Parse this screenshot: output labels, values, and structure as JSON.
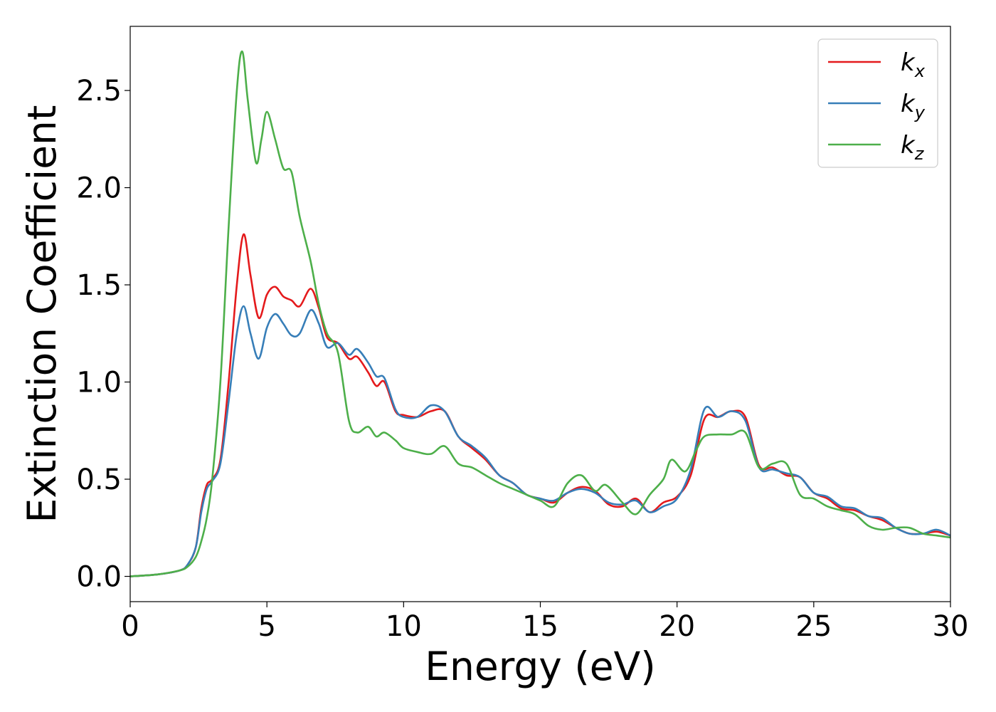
{
  "chart_data": {
    "type": "line",
    "title": "",
    "xlabel": "Energy (eV)",
    "ylabel": "Extinction Coefficient",
    "xlim": [
      0,
      30
    ],
    "ylim": [
      -0.13,
      2.83
    ],
    "xticks": [
      0,
      5,
      10,
      15,
      20,
      25,
      30
    ],
    "xtick_labels": [
      "0",
      "5",
      "10",
      "15",
      "20",
      "25",
      "30"
    ],
    "yticks": [
      0.0,
      0.5,
      1.0,
      1.5,
      2.0,
      2.5
    ],
    "ytick_labels": [
      "0.0",
      "0.5",
      "1.0",
      "1.5",
      "2.0",
      "2.5"
    ],
    "grid": false,
    "legend_position": "top-right",
    "series": [
      {
        "name": "k_x",
        "legend_base": "k",
        "legend_sub": "x",
        "color": "#e41a1c",
        "x": [
          0,
          1,
          1.8,
          2.1,
          2.4,
          2.6,
          2.8,
          3.0,
          3.3,
          3.6,
          3.9,
          4.15,
          4.4,
          4.7,
          5.0,
          5.3,
          5.6,
          5.9,
          6.2,
          6.6,
          6.9,
          7.2,
          7.6,
          8.0,
          8.3,
          8.7,
          9.0,
          9.3,
          9.7,
          10.0,
          10.5,
          11.0,
          11.5,
          12.0,
          12.5,
          13.0,
          13.5,
          14.0,
          14.5,
          15.0,
          15.5,
          16.0,
          16.5,
          17.0,
          17.5,
          18.0,
          18.5,
          19.0,
          19.5,
          20.0,
          20.5,
          21.0,
          21.5,
          22.0,
          22.5,
          23.0,
          23.5,
          24.0,
          24.5,
          25.0,
          25.5,
          26.0,
          26.5,
          27.0,
          27.5,
          28.0,
          28.5,
          29.0,
          29.5,
          30.0
        ],
        "y": [
          0.0,
          0.01,
          0.03,
          0.06,
          0.15,
          0.35,
          0.47,
          0.5,
          0.6,
          1.0,
          1.5,
          1.76,
          1.55,
          1.33,
          1.45,
          1.49,
          1.44,
          1.42,
          1.39,
          1.48,
          1.38,
          1.23,
          1.2,
          1.12,
          1.13,
          1.05,
          0.98,
          1.0,
          0.85,
          0.83,
          0.82,
          0.85,
          0.85,
          0.72,
          0.66,
          0.6,
          0.52,
          0.48,
          0.42,
          0.4,
          0.38,
          0.43,
          0.46,
          0.44,
          0.37,
          0.36,
          0.4,
          0.33,
          0.38,
          0.41,
          0.52,
          0.81,
          0.82,
          0.85,
          0.82,
          0.57,
          0.56,
          0.52,
          0.51,
          0.43,
          0.4,
          0.35,
          0.34,
          0.31,
          0.29,
          0.25,
          0.22,
          0.22,
          0.23,
          0.21
        ]
      },
      {
        "name": "k_y",
        "legend_base": "k",
        "legend_sub": "y",
        "color": "#377eb8",
        "x": [
          0,
          1,
          1.8,
          2.1,
          2.4,
          2.6,
          2.8,
          3.0,
          3.3,
          3.6,
          3.9,
          4.15,
          4.4,
          4.7,
          5.0,
          5.3,
          5.6,
          5.9,
          6.2,
          6.6,
          6.9,
          7.2,
          7.6,
          8.0,
          8.3,
          8.7,
          9.0,
          9.3,
          9.7,
          10.0,
          10.5,
          11.0,
          11.5,
          12.0,
          12.5,
          13.0,
          13.5,
          14.0,
          14.5,
          15.0,
          15.5,
          16.0,
          16.5,
          17.0,
          17.5,
          18.0,
          18.5,
          19.0,
          19.5,
          20.0,
          20.5,
          21.0,
          21.5,
          22.0,
          22.5,
          23.0,
          23.5,
          24.0,
          24.5,
          25.0,
          25.5,
          26.0,
          26.5,
          27.0,
          27.5,
          28.0,
          28.5,
          29.0,
          29.5,
          30.0
        ],
        "y": [
          0.0,
          0.01,
          0.03,
          0.06,
          0.15,
          0.33,
          0.45,
          0.49,
          0.58,
          0.9,
          1.25,
          1.39,
          1.25,
          1.12,
          1.28,
          1.35,
          1.3,
          1.24,
          1.25,
          1.37,
          1.3,
          1.18,
          1.2,
          1.14,
          1.17,
          1.1,
          1.03,
          1.02,
          0.86,
          0.82,
          0.82,
          0.88,
          0.85,
          0.72,
          0.67,
          0.61,
          0.52,
          0.48,
          0.42,
          0.4,
          0.39,
          0.43,
          0.45,
          0.43,
          0.38,
          0.37,
          0.39,
          0.33,
          0.36,
          0.4,
          0.55,
          0.86,
          0.82,
          0.85,
          0.8,
          0.56,
          0.55,
          0.53,
          0.51,
          0.43,
          0.41,
          0.36,
          0.35,
          0.31,
          0.3,
          0.25,
          0.22,
          0.22,
          0.24,
          0.21
        ]
      },
      {
        "name": "k_z",
        "legend_base": "k",
        "legend_sub": "z",
        "color": "#4daf4a",
        "x": [
          0,
          1,
          1.8,
          2.1,
          2.4,
          2.6,
          2.8,
          3.0,
          3.3,
          3.6,
          3.9,
          4.1,
          4.3,
          4.6,
          4.8,
          5.0,
          5.3,
          5.6,
          5.9,
          6.2,
          6.6,
          6.9,
          7.2,
          7.6,
          8.0,
          8.3,
          8.7,
          9.0,
          9.3,
          9.7,
          10.0,
          10.5,
          11.0,
          11.5,
          12.0,
          12.5,
          13.0,
          13.5,
          14.0,
          14.5,
          15.0,
          15.5,
          16.0,
          16.5,
          17.0,
          17.4,
          18.0,
          18.5,
          19.0,
          19.5,
          19.8,
          20.3,
          20.7,
          21.0,
          21.5,
          22.0,
          22.5,
          23.0,
          23.5,
          24.0,
          24.5,
          25.0,
          25.5,
          26.0,
          26.5,
          27.0,
          27.5,
          28.0,
          28.5,
          29.0,
          29.5,
          30.0
        ],
        "y": [
          0.0,
          0.01,
          0.03,
          0.05,
          0.1,
          0.18,
          0.3,
          0.5,
          1.0,
          1.8,
          2.5,
          2.7,
          2.45,
          2.13,
          2.25,
          2.39,
          2.25,
          2.1,
          2.08,
          1.85,
          1.62,
          1.4,
          1.25,
          1.15,
          0.8,
          0.74,
          0.77,
          0.72,
          0.74,
          0.7,
          0.66,
          0.64,
          0.63,
          0.67,
          0.58,
          0.56,
          0.52,
          0.48,
          0.45,
          0.42,
          0.39,
          0.36,
          0.48,
          0.52,
          0.44,
          0.47,
          0.38,
          0.32,
          0.42,
          0.5,
          0.6,
          0.54,
          0.65,
          0.72,
          0.73,
          0.73,
          0.74,
          0.56,
          0.58,
          0.58,
          0.42,
          0.4,
          0.36,
          0.34,
          0.32,
          0.26,
          0.24,
          0.25,
          0.25,
          0.22,
          0.21,
          0.2
        ]
      }
    ]
  }
}
